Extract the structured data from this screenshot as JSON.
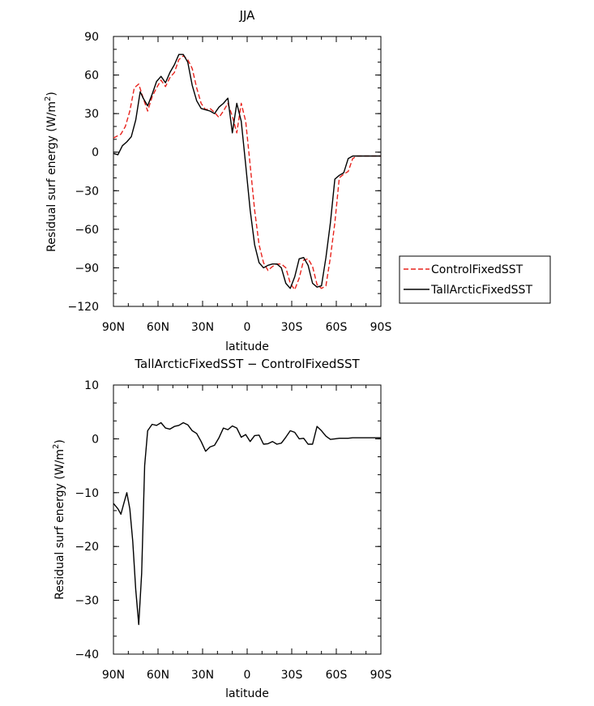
{
  "chart_data": [
    {
      "type": "line",
      "title": "JJA",
      "xlabel": "latitude",
      "ylabel_main": "Residual surf energy  (W/m",
      "ylabel_sup": "2",
      "ylabel_tail": ")",
      "xlim": [
        90,
        -90
      ],
      "ylim": [
        -120,
        90
      ],
      "x_ticks": [
        90,
        60,
        30,
        0,
        -30,
        -60,
        -90
      ],
      "x_tick_labels": [
        "90N",
        "60N",
        "30N",
        "0",
        "30S",
        "60S",
        "90S"
      ],
      "y_ticks": [
        -120,
        -90,
        -60,
        -30,
        0,
        30,
        60,
        90
      ],
      "y_tick_labels": [
        "−120",
        "−90",
        "−60",
        "−30",
        "0",
        "30",
        "60",
        "90"
      ],
      "legend_position": "right",
      "series": [
        {
          "name": "ControlFixedSST",
          "color": "#e8231d",
          "dash": "dashed",
          "x": [
            90,
            85,
            82,
            79,
            76,
            73,
            70,
            67,
            64,
            61,
            58,
            55,
            52,
            49,
            46,
            43,
            40,
            37,
            34,
            31,
            28,
            25,
            22,
            19,
            16,
            13,
            10,
            7,
            4,
            1,
            -2,
            -5,
            -8,
            -11,
            -14,
            -17,
            -20,
            -23,
            -26,
            -29,
            -32,
            -35,
            -38,
            -41,
            -44,
            -47,
            -50,
            -53,
            -56,
            -59,
            -62,
            -65,
            -68,
            -71,
            -74,
            -77,
            -80,
            -83,
            -86,
            -90
          ],
          "y": [
            11,
            14,
            20,
            32,
            50,
            53,
            42,
            32,
            43,
            50,
            56,
            51,
            58,
            62,
            72,
            75,
            72,
            65,
            50,
            38,
            33,
            34,
            31,
            27,
            32,
            38,
            28,
            15,
            38,
            24,
            -10,
            -45,
            -72,
            -86,
            -92,
            -89,
            -87,
            -87,
            -90,
            -102,
            -107,
            -98,
            -84,
            -83,
            -89,
            -103,
            -106,
            -104,
            -82,
            -55,
            -20,
            -17,
            -15,
            -5,
            -3,
            -3,
            -3,
            -3,
            -3,
            -3
          ]
        },
        {
          "name": "TallArcticFixedSST",
          "color": "#000000",
          "dash": "solid",
          "x": [
            90,
            87,
            84,
            81,
            78,
            75,
            72,
            70,
            67,
            64,
            61,
            58,
            55,
            52,
            49,
            46,
            43,
            40,
            37,
            34,
            31,
            28,
            25,
            22,
            19,
            16,
            13,
            10,
            7,
            4,
            1,
            -2,
            -5,
            -8,
            -11,
            -14,
            -17,
            -20,
            -23,
            -26,
            -29,
            -32,
            -35,
            -38,
            -41,
            -44,
            -47,
            -50,
            -53,
            -56,
            -59,
            -62,
            -65,
            -68,
            -71,
            -74,
            -77,
            -80,
            -83,
            -86,
            -90
          ],
          "y": [
            -1,
            -2,
            5,
            8,
            12,
            25,
            47,
            42,
            36,
            45,
            55,
            59,
            54,
            62,
            68,
            76,
            76,
            70,
            52,
            40,
            34,
            33,
            32,
            30,
            35,
            38,
            42,
            15,
            38,
            24,
            -10,
            -45,
            -72,
            -86,
            -90,
            -88,
            -87,
            -87,
            -90,
            -102,
            -106,
            -97,
            -83,
            -82,
            -88,
            -102,
            -105,
            -104,
            -82,
            -55,
            -21,
            -18,
            -16,
            -5,
            -3,
            -3,
            -3,
            -3,
            -3,
            -3,
            -3
          ]
        }
      ]
    },
    {
      "type": "line",
      "title": "TallArcticFixedSST − ControlFixedSST",
      "xlabel": "latitude",
      "ylabel_main": "Residual surf energy  (W/m",
      "ylabel_sup": "2",
      "ylabel_tail": ")",
      "xlim": [
        90,
        -90
      ],
      "ylim": [
        -40,
        10
      ],
      "x_ticks": [
        90,
        60,
        30,
        0,
        -30,
        -60,
        -90
      ],
      "x_tick_labels": [
        "90N",
        "60N",
        "30N",
        "0",
        "30S",
        "60S",
        "90S"
      ],
      "y_ticks": [
        -40,
        -30,
        -20,
        -10,
        0,
        10
      ],
      "y_tick_labels": [
        "−40",
        "−30",
        "−20",
        "−10",
        "0",
        "10"
      ],
      "series": [
        {
          "color": "#000000",
          "dash": "solid",
          "x": [
            90,
            87,
            85,
            83,
            81,
            79,
            77,
            75,
            73,
            71,
            69,
            67,
            64,
            61,
            58,
            55,
            52,
            49,
            46,
            43,
            40,
            37,
            34,
            31,
            28,
            25,
            22,
            19,
            16,
            13,
            10,
            7,
            4,
            1,
            -2,
            -5,
            -8,
            -11,
            -14,
            -17,
            -20,
            -23,
            -26,
            -29,
            -32,
            -35,
            -38,
            -41,
            -44,
            -47,
            -50,
            -53,
            -56,
            -59,
            -62,
            -65,
            -68,
            -71,
            -74,
            -77,
            -80,
            -83,
            -86,
            -90
          ],
          "y": [
            -12,
            -13,
            -14,
            -12,
            -10,
            -13,
            -19,
            -28,
            -34.5,
            -25,
            -5,
            1.5,
            2.7,
            2.5,
            3,
            2,
            1.8,
            2.3,
            2.5,
            3,
            2.6,
            1.5,
            1,
            -0.5,
            -2.3,
            -1.5,
            -1.2,
            0.2,
            2,
            1.7,
            2.4,
            2,
            0.3,
            0.8,
            -0.5,
            0.6,
            0.7,
            -1,
            -0.9,
            -0.5,
            -1,
            -0.8,
            0.3,
            1.5,
            1.2,
            0,
            0.1,
            -1,
            -1,
            2.3,
            1.5,
            0.5,
            -0.1,
            0,
            0.1,
            0.1,
            0.1,
            0.2,
            0.2,
            0.2,
            0.2,
            0.2,
            0.2,
            0.2
          ]
        }
      ]
    }
  ]
}
